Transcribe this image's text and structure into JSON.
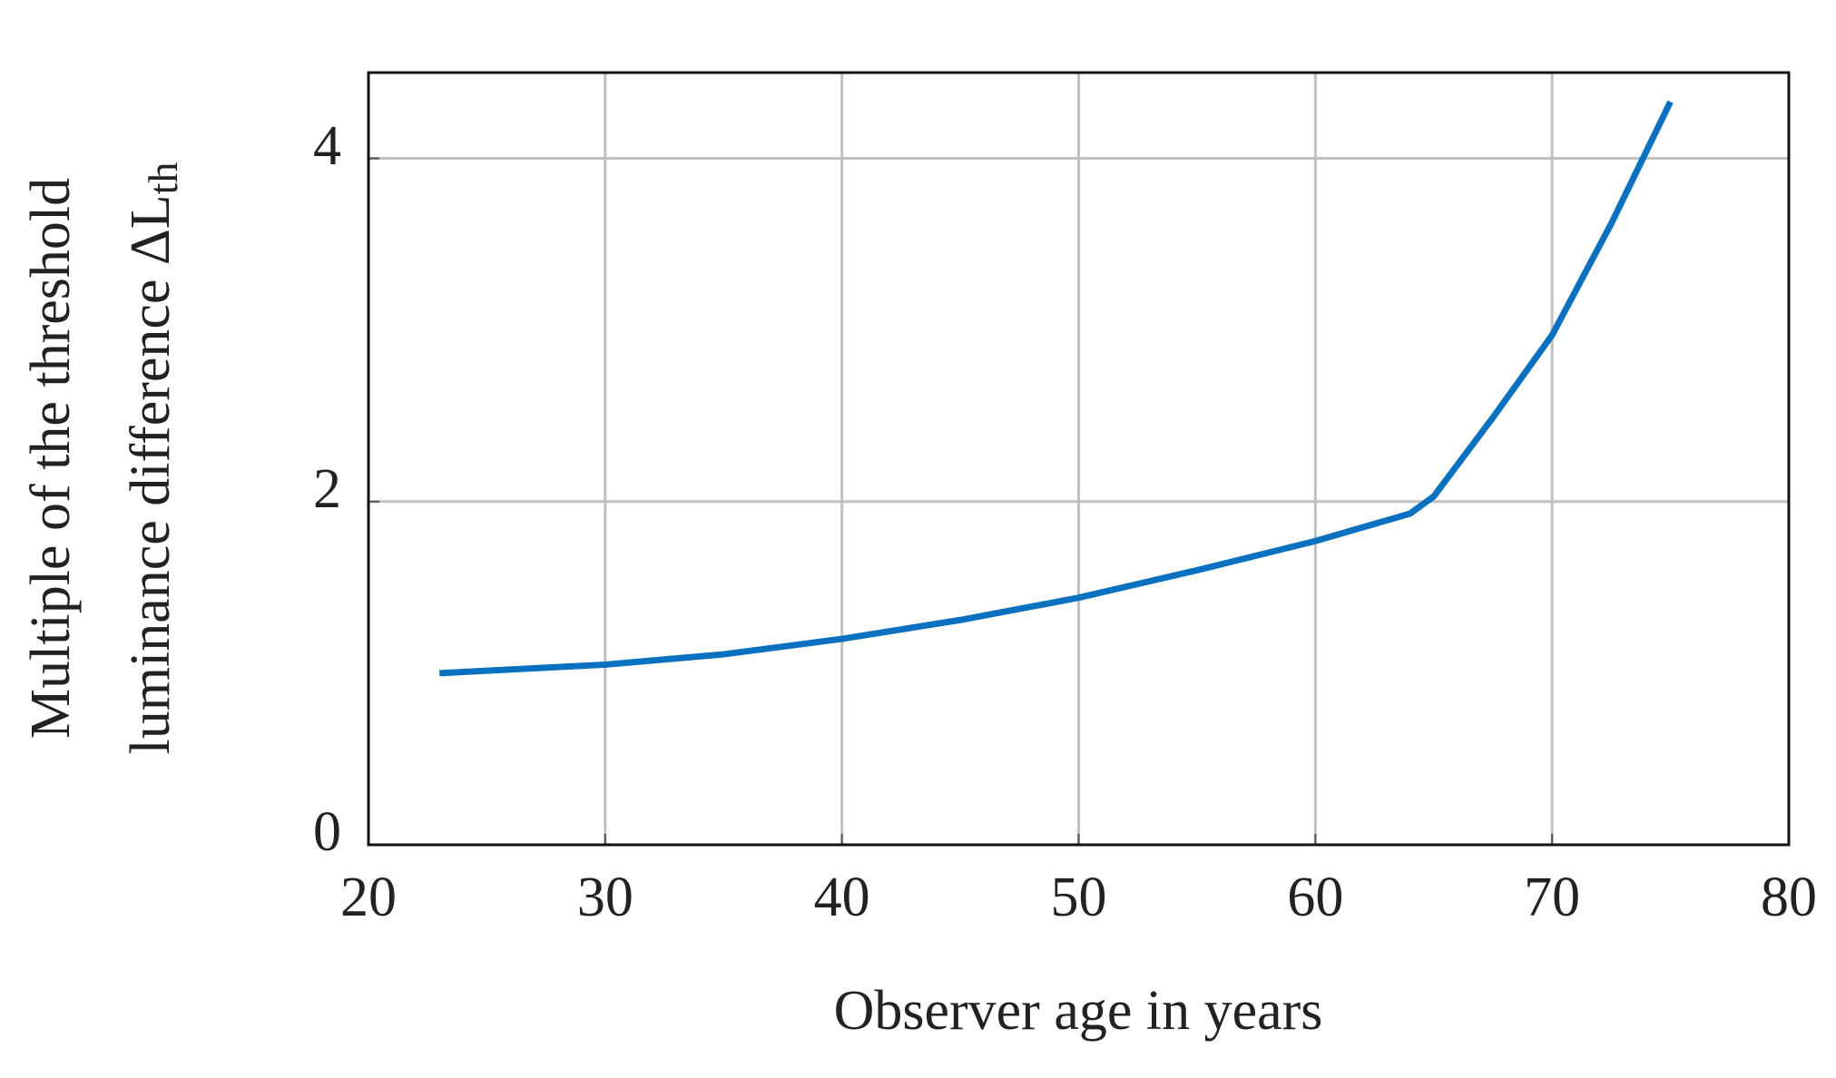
{
  "chart_data": {
    "type": "line",
    "xlabel": "Observer age in years",
    "ylabel": [
      "Multiple of the threshold",
      "luminance difference ΔL"
    ],
    "ylabel_subscript": "th",
    "x": [
      23,
      30,
      35,
      40,
      45,
      50,
      55,
      60,
      64,
      65,
      67.5,
      70,
      72.5,
      75
    ],
    "series": [
      {
        "color": "#0a70c0",
        "values": [
          1.0,
          1.05,
          1.11,
          1.2,
          1.31,
          1.44,
          1.6,
          1.77,
          1.93,
          2.03,
          2.49,
          2.97,
          3.62,
          4.33
        ]
      }
    ],
    "xlim": [
      20,
      80
    ],
    "xticks": [
      20,
      30,
      40,
      50,
      60,
      70,
      80
    ],
    "ylim": [
      0,
      4.5
    ],
    "yticks": [
      0,
      2,
      4
    ],
    "grid": true
  }
}
